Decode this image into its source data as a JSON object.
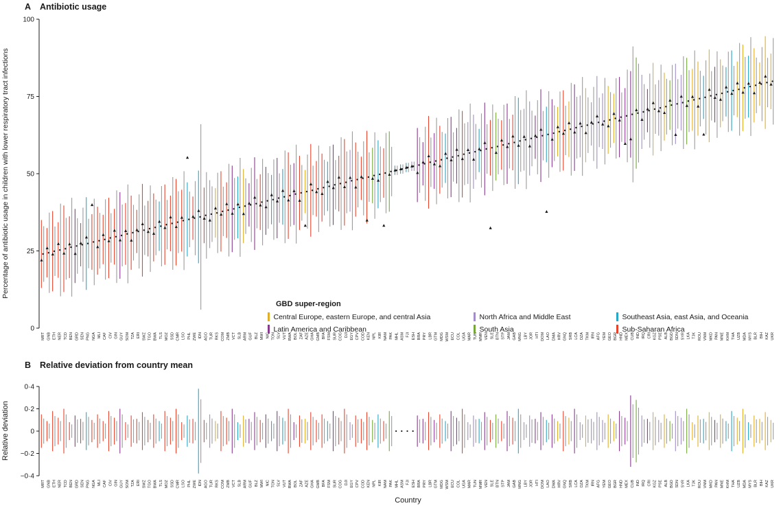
{
  "figure": {
    "panel_a_label": "A",
    "panel_a_title": "Antibiotic usage",
    "panel_b_label": "B",
    "panel_b_title": "Relative deviation from country mean",
    "y_label_a": "Percentage of antibiotic usage in children with lower respiratory tract infections",
    "y_label_b": "Relative deviation",
    "x_label": "Country",
    "legend_title": "GBD super-region"
  },
  "regions": [
    {
      "key": "CE",
      "label": "Central Europe, eastern Europe, and central Asia",
      "color": "#DFAF2B"
    },
    {
      "key": "LA",
      "label": "Latin America and Caribbean",
      "color": "#8A3A8F"
    },
    {
      "key": "NA",
      "label": "North Africa and Middle East",
      "color": "#A28CC9"
    },
    {
      "key": "SA",
      "label": "South Asia",
      "color": "#76A73B"
    },
    {
      "key": "SE",
      "label": "Southeast Asia, east Asia, and Oceania",
      "color": "#29A7C7"
    },
    {
      "key": "SS",
      "label": "Sub-Saharan Africa",
      "color": "#E8442D"
    }
  ],
  "chart_data": {
    "type": "scatter",
    "title": "Antibiotic usage",
    "subtitle": "Relative deviation from country mean",
    "ylabel_a": "Percentage of antibiotic usage in children with lower respiratory tract infections",
    "ylabel_b": "Relative deviation",
    "xlabel": "Country",
    "ylim_a": [
      0,
      100
    ],
    "yticks_a": [
      100,
      75,
      50,
      25,
      0
    ],
    "ylim_b": [
      -0.4,
      0.4
    ],
    "yticks_b_values": [
      0.4,
      0.2,
      0,
      -0.2,
      -0.4
    ],
    "yticks_b_labels": [
      "0·4",
      "0·2",
      "0",
      "−0·2",
      "−0·4"
    ],
    "legend_position": "inside lower-right of panel A",
    "grid": false,
    "model_color": "#9B9B9B",
    "point_color": "#1a1a1a",
    "columns": [
      "code",
      "region",
      "mean",
      "ci_half_survey",
      "ci_half_model",
      "deviation_half",
      "survey_offset"
    ],
    "countries": [
      [
        "MRT",
        "SS",
        24.0,
        11,
        9,
        0.15,
        -2
      ],
      [
        "GNB",
        "SS",
        24.4,
        8,
        13,
        0.09,
        1.5
      ],
      [
        "ETH",
        "SS",
        24.9,
        13,
        8,
        0.18,
        -1
      ],
      [
        "NER",
        "SS",
        25.3,
        9,
        15,
        0.12,
        2
      ],
      [
        "TCD",
        "SS",
        25.7,
        14,
        10,
        0.2,
        -1.5
      ],
      [
        "BEN",
        "SS",
        26.2,
        10,
        16,
        0.08,
        1
      ],
      [
        "GRD",
        "LA",
        26.6,
        12,
        9,
        0.14,
        -2.5
      ],
      [
        "SEN",
        "SS",
        27.0,
        7,
        12,
        0.11,
        0.5
      ],
      [
        "PNG",
        "SE",
        27.4,
        15,
        8,
        0.17,
        2
      ],
      [
        "NGA",
        "SS",
        27.9,
        9,
        14,
        0.1,
        12
      ],
      [
        "MLI",
        "SS",
        28.3,
        11,
        9,
        0.15,
        -2
      ],
      [
        "CAF",
        "SS",
        28.7,
        8,
        13,
        0.09,
        1.5
      ],
      [
        "CIV",
        "SS",
        29.2,
        13,
        8,
        0.18,
        -1
      ],
      [
        "GIN",
        "SS",
        29.6,
        9,
        15,
        0.12,
        2
      ],
      [
        "GUY",
        "LA",
        30.0,
        14,
        10,
        0.2,
        -1.5
      ],
      [
        "SOM",
        "SS",
        30.5,
        10,
        16,
        0.08,
        1
      ],
      [
        "TZA",
        "SS",
        30.9,
        12,
        9,
        0.14,
        -2.5
      ],
      [
        "ERI",
        "SS",
        31.3,
        7,
        12,
        0.11,
        0.5
      ],
      [
        "SWZ",
        "SS",
        31.7,
        15,
        8,
        0.17,
        2
      ],
      [
        "TGO",
        "SS",
        32.2,
        9,
        14,
        0.1,
        -1
      ],
      [
        "BWA",
        "SS",
        32.6,
        11,
        9,
        0.15,
        -2
      ],
      [
        "TLS",
        "SE",
        33.0,
        8,
        13,
        0.09,
        1.5
      ],
      [
        "MOZ",
        "SS",
        33.5,
        13,
        8,
        0.18,
        -1
      ],
      [
        "SSD",
        "SS",
        33.9,
        9,
        15,
        0.12,
        2
      ],
      [
        "CMR",
        "SS",
        34.3,
        14,
        10,
        0.2,
        -1.5
      ],
      [
        "LSO",
        "SS",
        34.8,
        10,
        16,
        0.08,
        1
      ],
      [
        "PHL",
        "SE",
        35.2,
        12,
        9,
        0.14,
        20
      ],
      [
        "ZWE",
        "SS",
        35.6,
        7,
        12,
        0.11,
        0.5
      ],
      [
        "IDN",
        "SE",
        36.0,
        15,
        30,
        0.38,
        2
      ],
      [
        "AGO",
        "SS",
        36.5,
        9,
        14,
        0.1,
        -1
      ],
      [
        "TUR",
        "NA",
        36.9,
        11,
        9,
        0.15,
        -2
      ],
      [
        "RKS",
        "CE",
        37.3,
        8,
        13,
        0.09,
        1.5
      ],
      [
        "COM",
        "SS",
        37.8,
        13,
        8,
        0.18,
        -1
      ],
      [
        "ZMB",
        "SS",
        38.2,
        9,
        15,
        0.12,
        2
      ],
      [
        "VCT",
        "LA",
        38.6,
        14,
        10,
        0.2,
        -1.5
      ],
      [
        "SLB",
        "SE",
        39.1,
        10,
        16,
        0.08,
        1
      ],
      [
        "ARM",
        "CE",
        39.5,
        12,
        9,
        0.14,
        -2.5
      ],
      [
        "GUF",
        "LA",
        39.9,
        7,
        12,
        0.11,
        0.5
      ],
      [
        "BLZ",
        "LA",
        40.3,
        15,
        8,
        0.17,
        2
      ],
      [
        "MWI",
        "SS",
        40.8,
        9,
        14,
        0.1,
        -1
      ],
      [
        "NIC",
        "LA",
        41.2,
        11,
        9,
        0.15,
        -2
      ],
      [
        "TON",
        "SE",
        41.6,
        8,
        13,
        0.09,
        1.5
      ],
      [
        "SLV",
        "LA",
        42.1,
        13,
        8,
        0.18,
        -1
      ],
      [
        "VUT",
        "SE",
        42.5,
        9,
        15,
        0.12,
        2
      ],
      [
        "RWA",
        "SS",
        42.9,
        14,
        10,
        0.2,
        -1.5
      ],
      [
        "BOL",
        "LA",
        43.4,
        10,
        16,
        0.08,
        1
      ],
      [
        "ZAF",
        "SS",
        43.8,
        12,
        9,
        0.14,
        -2.5
      ],
      [
        "AZE",
        "CE",
        44.2,
        7,
        12,
        0.11,
        -11
      ],
      [
        "GHA",
        "SS",
        44.6,
        15,
        8,
        0.17,
        2
      ],
      [
        "GMB",
        "SS",
        45.1,
        9,
        14,
        0.1,
        -1
      ],
      [
        "BFA",
        "SS",
        45.5,
        11,
        9,
        0.15,
        -2
      ],
      [
        "FSM",
        "SE",
        45.9,
        8,
        13,
        0.09,
        1.5
      ],
      [
        "SUR",
        "LA",
        46.4,
        13,
        8,
        0.18,
        -1
      ],
      [
        "COG",
        "SS",
        46.8,
        9,
        15,
        0.12,
        2
      ],
      [
        "DJI",
        "SS",
        47.2,
        14,
        10,
        0.2,
        -1.5
      ],
      [
        "EGY",
        "NA",
        47.7,
        10,
        16,
        0.08,
        1
      ],
      [
        "CPV",
        "SS",
        48.1,
        12,
        9,
        0.14,
        -2.5
      ],
      [
        "COD",
        "SS",
        48.5,
        7,
        12,
        0.11,
        0.5
      ],
      [
        "KEN",
        "SS",
        48.9,
        15,
        8,
        0.17,
        -14
      ],
      [
        "NPL",
        "SA",
        49.4,
        9,
        14,
        0.1,
        -1
      ],
      [
        "KIR",
        "SE",
        49.8,
        11,
        9,
        0.15,
        -2
      ],
      [
        "NAM",
        "SS",
        50.2,
        8,
        13,
        0.09,
        -17
      ],
      [
        "PAK",
        "SA",
        50.7,
        13,
        8,
        0.18,
        -1
      ],
      [
        "MHL",
        "SE",
        51.1,
        1.5,
        1.5,
        0,
        0
      ],
      [
        "ASM",
        "SE",
        51.5,
        1.5,
        1.5,
        0,
        0
      ],
      [
        "FJI",
        "SE",
        52.0,
        1.5,
        1.5,
        0,
        0
      ],
      [
        "ESH",
        "NA",
        52.4,
        1.5,
        1.5,
        0,
        0
      ],
      [
        "BRA",
        "LA",
        52.8,
        12,
        9,
        0.14,
        -2.5
      ],
      [
        "PRY",
        "LA",
        53.2,
        7,
        12,
        0.11,
        0.5
      ],
      [
        "LBR",
        "SS",
        53.7,
        15,
        8,
        0.17,
        2
      ],
      [
        "GTM",
        "LA",
        54.1,
        9,
        14,
        0.1,
        -1
      ],
      [
        "MDG",
        "SS",
        54.5,
        11,
        9,
        0.15,
        -2
      ],
      [
        "WSM",
        "SE",
        55.0,
        8,
        13,
        0.09,
        1.5
      ],
      [
        "ECU",
        "LA",
        55.4,
        13,
        8,
        0.18,
        -1
      ],
      [
        "COL",
        "LA",
        55.8,
        9,
        15,
        0.12,
        2
      ],
      [
        "UGA",
        "SS",
        56.3,
        14,
        10,
        0.2,
        -1.5
      ],
      [
        "MAR",
        "NA",
        56.7,
        10,
        16,
        0.08,
        1
      ],
      [
        "TUN",
        "NA",
        57.1,
        12,
        9,
        0.14,
        -2.5
      ],
      [
        "MMR",
        "SE",
        57.5,
        7,
        12,
        0.11,
        0.5
      ],
      [
        "VEN",
        "LA",
        58.0,
        15,
        8,
        0.17,
        2
      ],
      [
        "SLE",
        "SS",
        58.4,
        9,
        14,
        0.1,
        -26
      ],
      [
        "BTN",
        "SA",
        58.8,
        11,
        9,
        0.15,
        -2
      ],
      [
        "STP",
        "SS",
        59.3,
        8,
        13,
        0.09,
        1.5
      ],
      [
        "JAM",
        "LA",
        59.7,
        13,
        8,
        0.18,
        -1
      ],
      [
        "GAB",
        "SS",
        60.1,
        9,
        15,
        0.12,
        2
      ],
      [
        "MNG",
        "SE",
        60.6,
        14,
        10,
        0.2,
        -1.5
      ],
      [
        "LBY",
        "NA",
        61.0,
        10,
        16,
        0.08,
        1
      ],
      [
        "JOR",
        "NA",
        61.4,
        12,
        9,
        0.14,
        -2.5
      ],
      [
        "HTI",
        "LA",
        61.8,
        7,
        12,
        0.11,
        0.5
      ],
      [
        "DOM",
        "LA",
        62.3,
        15,
        8,
        0.17,
        2
      ],
      [
        "LAO",
        "SE",
        62.7,
        9,
        14,
        0.1,
        -25
      ],
      [
        "DMA",
        "LA",
        63.1,
        11,
        9,
        0.15,
        -2
      ],
      [
        "HRV",
        "CE",
        63.6,
        8,
        13,
        0.09,
        1.5
      ],
      [
        "GNQ",
        "SS",
        64.0,
        13,
        8,
        0.18,
        -1
      ],
      [
        "SRB",
        "CE",
        64.4,
        9,
        15,
        0.12,
        2
      ],
      [
        "LCA",
        "LA",
        64.9,
        14,
        10,
        0.2,
        -1.5
      ],
      [
        "DZA",
        "NA",
        65.3,
        10,
        16,
        0.08,
        1
      ],
      [
        "TKM",
        "CE",
        65.7,
        12,
        9,
        0.14,
        -2.5
      ],
      [
        "IRN",
        "NA",
        66.1,
        7,
        12,
        0.11,
        0.5
      ],
      [
        "AFG",
        "NA",
        66.6,
        15,
        8,
        0.17,
        2
      ],
      [
        "YEM",
        "NA",
        67.0,
        9,
        14,
        0.1,
        -1
      ],
      [
        "GEO",
        "CE",
        67.4,
        11,
        9,
        0.15,
        -2
      ],
      [
        "BGR",
        "CE",
        67.9,
        8,
        13,
        0.09,
        1.5
      ],
      [
        "HND",
        "LA",
        68.3,
        13,
        8,
        0.18,
        -1
      ],
      [
        "MEX",
        "LA",
        68.7,
        9,
        15,
        0.12,
        -9
      ],
      [
        "CUB",
        "LA",
        69.2,
        14,
        22,
        0.32,
        -8
      ],
      [
        "IND",
        "SA",
        69.6,
        18,
        16,
        0.28,
        1
      ],
      [
        "IRQ",
        "NA",
        70.0,
        12,
        9,
        0.14,
        -2.5
      ],
      [
        "CRI",
        "LA",
        70.4,
        7,
        12,
        0.11,
        0.5
      ],
      [
        "KGZ",
        "CE",
        70.9,
        15,
        8,
        0.17,
        2
      ],
      [
        "PSE",
        "NA",
        71.3,
        9,
        14,
        0.1,
        -1
      ],
      [
        "ALB",
        "CE",
        71.7,
        11,
        9,
        0.15,
        -2
      ],
      [
        "BGD",
        "SA",
        72.2,
        8,
        13,
        0.09,
        1.5
      ],
      [
        "SDN",
        "NA",
        72.6,
        13,
        8,
        0.18,
        -10
      ],
      [
        "SYR",
        "NA",
        73.0,
        9,
        15,
        0.12,
        2
      ],
      [
        "LKA",
        "SA",
        73.5,
        14,
        10,
        0.2,
        -1.5
      ],
      [
        "TJK",
        "CE",
        73.9,
        10,
        16,
        0.08,
        1
      ],
      [
        "ROU",
        "CE",
        74.3,
        12,
        9,
        0.14,
        -2.5
      ],
      [
        "VNM",
        "SE",
        74.7,
        7,
        12,
        0.11,
        -12
      ],
      [
        "MKD",
        "CE",
        75.2,
        15,
        8,
        0.17,
        2
      ],
      [
        "PAN",
        "LA",
        75.6,
        9,
        14,
        0.1,
        -1
      ],
      [
        "MNE",
        "CE",
        76.0,
        11,
        9,
        0.15,
        -2
      ],
      [
        "KHM",
        "SE",
        76.5,
        8,
        13,
        0.09,
        1.5
      ],
      [
        "THA",
        "SE",
        76.9,
        13,
        8,
        0.18,
        -1
      ],
      [
        "UZB",
        "CE",
        77.3,
        9,
        15,
        0.12,
        2
      ],
      [
        "MDA",
        "CE",
        77.8,
        14,
        10,
        0.2,
        -1.5
      ],
      [
        "MYS",
        "SE",
        78.2,
        10,
        16,
        0.08,
        1
      ],
      [
        "BLR",
        "CE",
        78.6,
        12,
        9,
        0.14,
        -2.5
      ],
      [
        "BIH",
        "CE",
        79.0,
        7,
        12,
        0.11,
        0.5
      ],
      [
        "KAZ",
        "CE",
        79.5,
        15,
        8,
        0.17,
        2
      ],
      [
        "UKR",
        "CE",
        79.9,
        9,
        14,
        0.1,
        -1
      ]
    ]
  }
}
